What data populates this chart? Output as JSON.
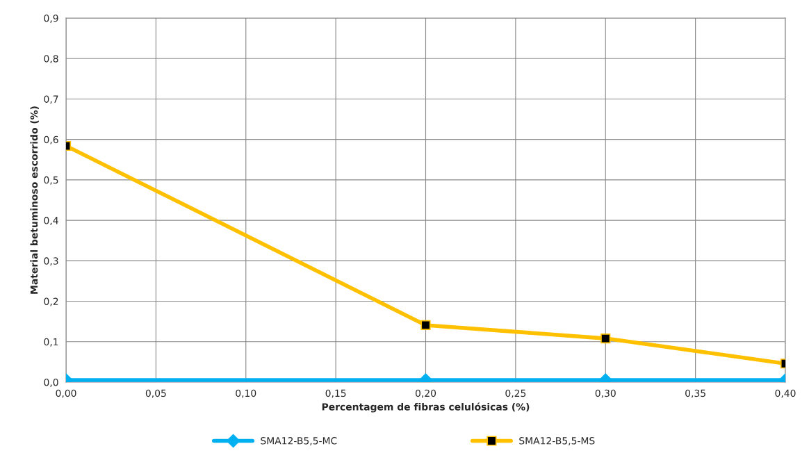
{
  "chart_data": {
    "type": "line",
    "xlabel": "Percentagem de fibras celulósicas (%)",
    "ylabel": "Material betuminoso escorrido (%)",
    "x": [
      0.0,
      0.2,
      0.3,
      0.4
    ],
    "series": [
      {
        "name": "SMA12-B5,5-MC",
        "color": "#00b0f0",
        "values": [
          0.005,
          0.005,
          0.005,
          0.005
        ],
        "marker": "diamond"
      },
      {
        "name": "SMA12-B5,5-MS",
        "color": "#ffc000",
        "values": [
          0.584,
          0.141,
          0.108,
          0.046
        ],
        "marker": "square"
      }
    ],
    "xlim": [
      0,
      0.4
    ],
    "xticks": [
      {
        "value": 0,
        "label": "0,00"
      },
      {
        "value": 0.05,
        "label": "0,05"
      },
      {
        "value": 0.1,
        "label": "0,10"
      },
      {
        "value": 0.15,
        "label": "0,15"
      },
      {
        "value": 0.2,
        "label": "0,20"
      },
      {
        "value": 0.25,
        "label": "0,25"
      },
      {
        "value": 0.3,
        "label": "0,30"
      },
      {
        "value": 0.35,
        "label": "0,35"
      },
      {
        "value": 0.4,
        "label": "0,40"
      }
    ],
    "ylim": [
      0,
      0.9
    ],
    "yticks": [
      {
        "value": 0,
        "label": "0,0"
      },
      {
        "value": 0.1,
        "label": "0,1"
      },
      {
        "value": 0.2,
        "label": "0,2"
      },
      {
        "value": 0.3,
        "label": "0,3"
      },
      {
        "value": 0.4,
        "label": "0,4"
      },
      {
        "value": 0.5,
        "label": "0,5"
      },
      {
        "value": 0.6,
        "label": "0,6"
      },
      {
        "value": 0.7,
        "label": "0,7"
      },
      {
        "value": 0.8,
        "label": "0,8"
      },
      {
        "value": 0.9,
        "label": "0,9"
      }
    ],
    "grid": true,
    "legend": "bottom",
    "line_style": "solid"
  }
}
